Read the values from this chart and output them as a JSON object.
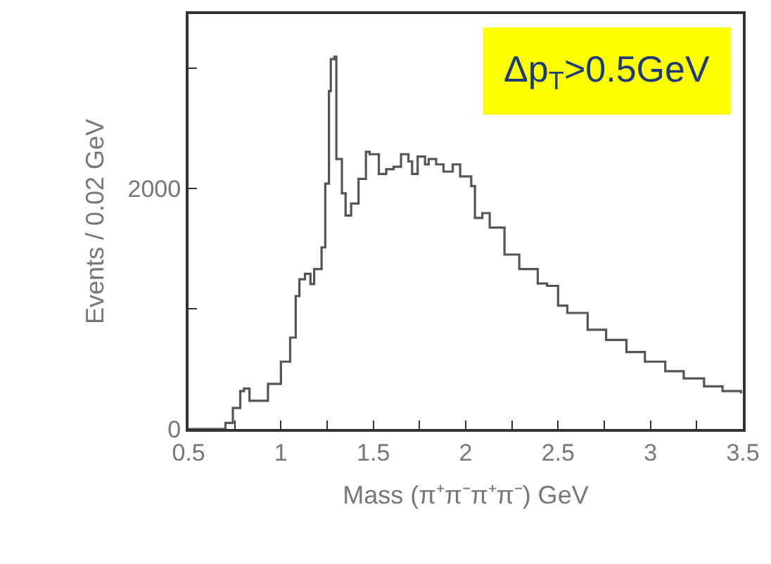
{
  "chart_data": {
    "type": "step",
    "xlabel": "Mass (π⁺π⁻π⁺π⁻) GeV",
    "ylabel": "Events / 0.02 GeV",
    "annotations": [
      "Δp$_{T}$>0.5GeV"
    ],
    "x": [
      0.5,
      0.645,
      0.7,
      0.74,
      0.78,
      0.8,
      0.83,
      0.87,
      0.93,
      1.0,
      1.05,
      1.08,
      1.1,
      1.13,
      1.16,
      1.18,
      1.22,
      1.24,
      1.26,
      1.27,
      1.29,
      1.3,
      1.33,
      1.35,
      1.38,
      1.42,
      1.46,
      1.48,
      1.53,
      1.57,
      1.61,
      1.65,
      1.69,
      1.71,
      1.74,
      1.78,
      1.8,
      1.84,
      1.88,
      1.93,
      1.97,
      2.03,
      2.05,
      2.09,
      2.13,
      2.21,
      2.29,
      2.39,
      2.44,
      2.5,
      2.55,
      2.66,
      2.76,
      2.87,
      2.97,
      3.08,
      3.18,
      3.29,
      3.39,
      3.49
    ],
    "series": [
      {
        "color": "#555555",
        "values": [
          0,
          0,
          50,
          175,
          315,
          335,
          235,
          235,
          375,
          560,
          760,
          1105,
          1245,
          1290,
          1205,
          1330,
          1510,
          2040,
          2810,
          3075,
          3095,
          2245,
          1960,
          1775,
          1875,
          2080,
          2305,
          2285,
          2120,
          2160,
          2180,
          2285,
          2225,
          2120,
          2265,
          2200,
          2245,
          2200,
          2140,
          2200,
          2100,
          2020,
          1755,
          1795,
          1675,
          1450,
          1330,
          1210,
          1190,
          1025,
          965,
          825,
          740,
          640,
          560,
          480,
          420,
          355,
          315,
          295
        ]
      }
    ],
    "xlim": [
      0.5,
      3.5
    ],
    "xticks": [
      0.5,
      {
        "value": 0.75,
        "label": null
      },
      1,
      {
        "value": 1.25,
        "label": null
      },
      1.5,
      {
        "value": 1.75,
        "label": null
      },
      2,
      {
        "value": 2.25,
        "label": null
      },
      2.5,
      {
        "value": 2.75,
        "label": null
      },
      3,
      {
        "value": 3.25,
        "label": null
      },
      3.5
    ],
    "ylim": [
      0,
      3450
    ],
    "yticks": [
      0,
      {
        "value": 1000,
        "label": null
      },
      2000,
      {
        "value": 3000,
        "label": null
      }
    ],
    "marker": "none",
    "line_style": "solid"
  }
}
